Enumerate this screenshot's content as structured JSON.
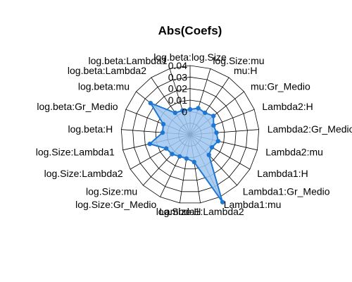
{
  "chart_data": {
    "type": "radar",
    "title": "Abs(Coefs)",
    "axis_ticks": [
      "0",
      "0.01",
      "0.02",
      "0.03",
      "0.04"
    ],
    "rlim": [
      -0.02,
      0.04
    ],
    "colors": {
      "fill": "#9dc5f0",
      "line": "#1f77d4",
      "grid": "#000000"
    },
    "series": [
      {
        "name": "Abs(Coefs)",
        "labels": [
          "log.beta:log.Size",
          "log.Size:mu",
          "mu:H",
          "mu:Gr_Medio",
          "Lambda2:H",
          "Lambda2:Gr_Medio",
          "Lambda2:mu",
          "Lambda1:H",
          "Lambda1:Gr_Medio",
          "Lambda1:mu",
          "Lambda1:Lambda2",
          "log.Size:H",
          "log.Size:Gr_Medio",
          "log.Size:mu",
          "log.Size:Lambda2",
          "log.Size:Lambda1",
          "log.beta:H",
          "log.beta:Gr_Medio",
          "log.beta:mu",
          "log.beta:Lambda2",
          "log.beta:Lambda1"
        ],
        "values": [
          0.002,
          0.004,
          0.003,
          0.006,
          0.002,
          0.003,
          0.005,
          0.002,
          0.004,
          0.045,
          0.004,
          0.001,
          0.001,
          0.003,
          0.004,
          0.016,
          0.004,
          0.005,
          0.024,
          0.003,
          0.002
        ]
      }
    ]
  }
}
